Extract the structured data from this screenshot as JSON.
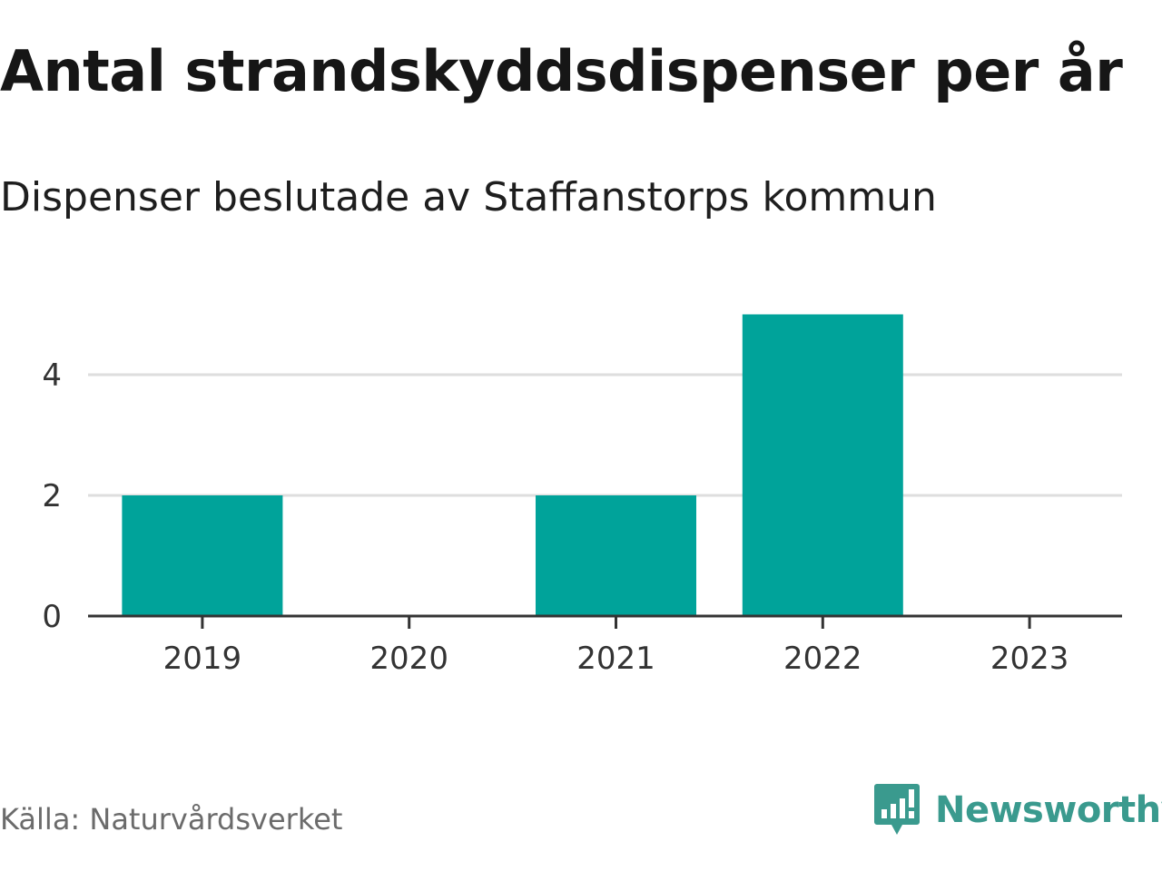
{
  "header": {
    "title": "Antal strandskyddsdispenser per år",
    "subtitle": "Dispenser beslutade av Staffanstorps kommun"
  },
  "footer": {
    "source": "Källa: Naturvårdsverket",
    "brand": "Newsworthy",
    "brand_icon": "bar-chart-speech-bubble-icon"
  },
  "colors": {
    "bar": "#00a39a",
    "grid": "#dedede",
    "axis": "#333333",
    "brand": "#3a9a8e"
  },
  "chart_data": {
    "type": "bar",
    "title": "Antal strandskyddsdispenser per år",
    "subtitle": "Dispenser beslutade av Staffanstorps kommun",
    "categories": [
      "2019",
      "2020",
      "2021",
      "2022",
      "2023"
    ],
    "values": [
      2,
      0,
      2,
      5,
      0
    ],
    "xlabel": "",
    "ylabel": "",
    "ylim": [
      0,
      5
    ],
    "yticks": [
      0,
      2,
      4
    ],
    "grid": true
  }
}
